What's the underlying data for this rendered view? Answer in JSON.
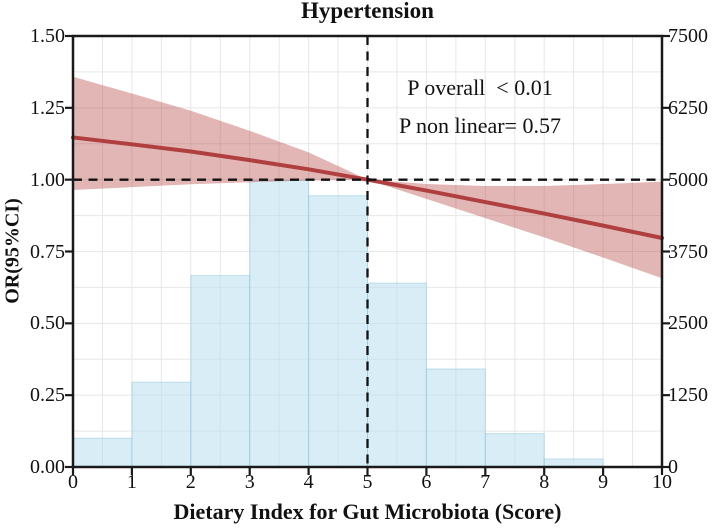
{
  "title": "Hypertension",
  "annotations": {
    "p_overall": "P overall  < 0.01",
    "p_nonlinear": "P non linear= 0.57"
  },
  "axes": {
    "x": {
      "label": "Dietary Index for Gut Microbiota (Score)",
      "ticks": [
        "0",
        "1",
        "2",
        "3",
        "4",
        "5",
        "6",
        "7",
        "8",
        "9",
        "10"
      ]
    },
    "y_left": {
      "label": "OR(95%CI)",
      "ticks": [
        "1.50",
        "1.25",
        "1.00",
        "0.75",
        "0.50",
        "0.25",
        "0.00"
      ]
    },
    "y_right": {
      "ticks": [
        "7500",
        "6250",
        "5000",
        "3750",
        "2500",
        "1250",
        "0"
      ]
    }
  },
  "colors": {
    "or_line": "#b04040",
    "ci_band": "rgba(178,64,60,0.38)",
    "histogram_fill": "rgba(186,223,240,0.55)",
    "histogram_edge": "rgba(148,199,221,0.55)",
    "grid": "#e7e7e7",
    "axis": "#1a1a1a",
    "dashed": "#111111"
  },
  "chart_data": {
    "type": "line",
    "title": "Hypertension",
    "xlabel": "Dietary Index for Gut Microbiota (Score)",
    "ylabel": "OR(95%CI)",
    "xlim": [
      0,
      10
    ],
    "ylim_left": [
      0,
      1.5
    ],
    "ylim_right": [
      0,
      7500
    ],
    "x": [
      0,
      1,
      2,
      3,
      4,
      5,
      6,
      7,
      8,
      9,
      10
    ],
    "series": [
      {
        "name": "OR",
        "style": "solid-line",
        "values": [
          1.147,
          1.123,
          1.098,
          1.068,
          1.036,
          1.0,
          0.962,
          0.922,
          0.882,
          0.84,
          0.797
        ]
      },
      {
        "name": "CI-upper",
        "style": "band-edge",
        "values": [
          1.358,
          1.3,
          1.24,
          1.17,
          1.095,
          1.0,
          0.985,
          0.978,
          0.978,
          0.985,
          0.993
        ]
      },
      {
        "name": "CI-lower",
        "style": "band-edge",
        "values": [
          0.964,
          0.974,
          0.984,
          0.991,
          0.997,
          1.0,
          0.933,
          0.866,
          0.799,
          0.729,
          0.657
        ]
      }
    ],
    "histogram": {
      "axis": "right",
      "bin_edges": [
        0,
        1,
        2,
        3,
        4,
        5,
        6,
        7,
        8,
        9,
        10
      ],
      "counts": [
        500,
        1475,
        3330,
        4985,
        4720,
        3200,
        1705,
        580,
        140,
        0
      ]
    },
    "reference_lines": {
      "horizontal_or": 1.0,
      "vertical_x": 5
    },
    "grid": {
      "on": true,
      "x_minor_step": 0.5,
      "y_minor_step": 0.125
    },
    "legend": "none",
    "annotations": [
      "P overall  < 0.01",
      "P non linear= 0.57"
    ]
  }
}
